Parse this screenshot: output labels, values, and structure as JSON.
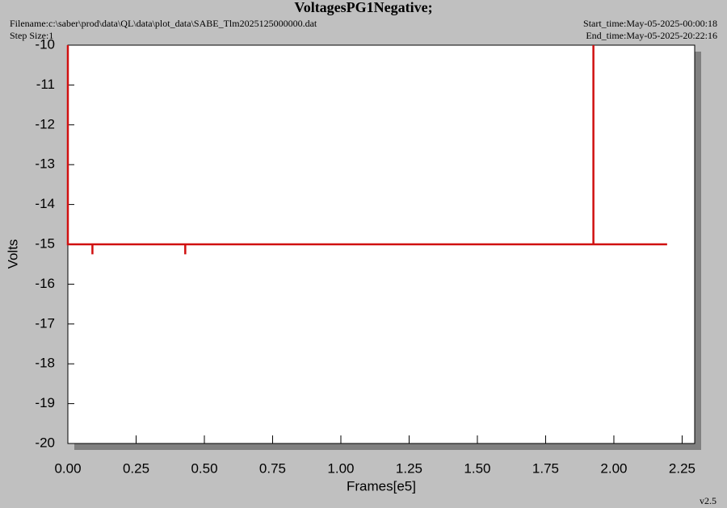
{
  "chart_data": {
    "type": "line",
    "title": "VoltagesPG1Negative;",
    "filename": "Filename:c:\\saber\\prod\\data\\QL\\data\\plot_data\\SABE_Tlm2025125000000.dat",
    "step_size": "Step Size:1",
    "start_time": "Start_time:May-05-2025-00:00:18",
    "end_time": "End_time:May-05-2025-20:22:16",
    "version": "v2.5",
    "x_label": "Frames[e5]",
    "y_label": "Volts",
    "x": [
      0,
      0,
      0.09,
      0.09,
      0.09,
      0.43,
      0.43,
      0.43,
      1.925,
      1.925,
      1.925,
      2.195
    ],
    "series": [
      {
        "name": "PG1Negative",
        "color": "#d01010",
        "values": [
          -10,
          -15,
          -15,
          -15.25,
          -15,
          -15,
          -15.25,
          -15,
          -15,
          -10,
          -15,
          -15
        ]
      }
    ],
    "xlim": [
      0,
      2.296
    ],
    "ylim": [
      -20,
      -10
    ],
    "xticks": [
      {
        "value": 0,
        "label": "0.00"
      },
      {
        "value": 0.25,
        "label": "0.25"
      },
      {
        "value": 0.5,
        "label": "0.50"
      },
      {
        "value": 0.75,
        "label": "0.75"
      },
      {
        "value": 1,
        "label": "1.00"
      },
      {
        "value": 1.25,
        "label": "1.25"
      },
      {
        "value": 1.5,
        "label": "1.50"
      },
      {
        "value": 1.75,
        "label": "1.75"
      },
      {
        "value": 2,
        "label": "2.00"
      },
      {
        "value": 2.25,
        "label": "2.25"
      }
    ],
    "yticks": [
      -10,
      -11,
      -12,
      -13,
      -14,
      -15,
      -16,
      -17,
      -18,
      -19,
      -20
    ]
  }
}
